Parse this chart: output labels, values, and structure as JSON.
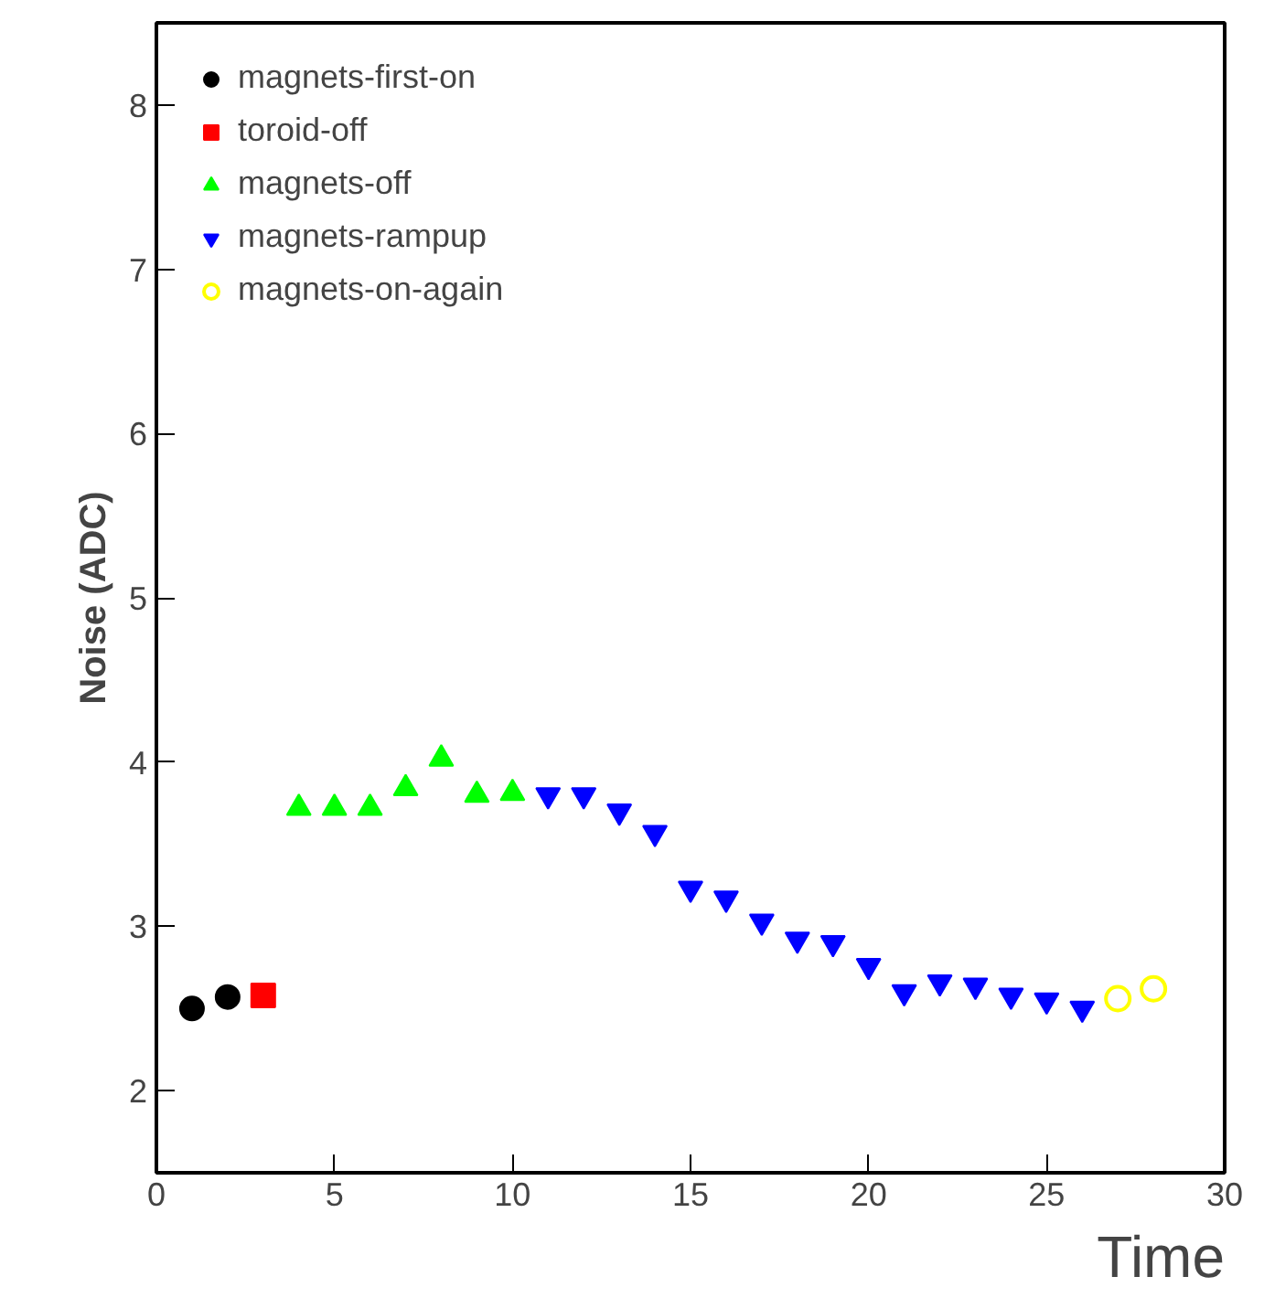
{
  "chart_data": {
    "type": "scatter",
    "xlabel": "Time",
    "ylabel": "Noise (ADC)",
    "xlim": [
      0,
      30
    ],
    "ylim": [
      1.5,
      8.5
    ],
    "xticks": [
      0,
      5,
      10,
      15,
      20,
      25,
      30
    ],
    "yticks": [
      2,
      3,
      4,
      5,
      6,
      7,
      8
    ],
    "grid": false,
    "legend": "top left",
    "series": [
      {
        "name": "magnets-first-on",
        "color": "#000000",
        "marker": "circle",
        "x": [
          1,
          2
        ],
        "values": [
          2.5,
          2.57
        ]
      },
      {
        "name": "toroid-off",
        "color": "#ff0000",
        "marker": "square",
        "x": [
          3
        ],
        "values": [
          2.58
        ]
      },
      {
        "name": "magnets-off",
        "color": "#00ff00",
        "marker": "triangle",
        "x": [
          4,
          5,
          6,
          7,
          8,
          9,
          10
        ],
        "values": [
          3.72,
          3.72,
          3.72,
          3.84,
          4.02,
          3.8,
          3.81
        ]
      },
      {
        "name": "magnets-rampup",
        "color": "#0000ff",
        "marker": "triangle_down",
        "x": [
          11,
          12,
          13,
          14,
          15,
          16,
          17,
          18,
          19,
          20,
          21,
          22,
          23,
          24,
          25,
          26
        ],
        "values": [
          3.8,
          3.8,
          3.7,
          3.57,
          3.23,
          3.17,
          3.03,
          2.92,
          2.9,
          2.76,
          2.6,
          2.66,
          2.64,
          2.58,
          2.55,
          2.5
        ]
      },
      {
        "name": "magnets-on-again",
        "color": "#ffff00",
        "marker": "circle_open",
        "x": [
          27,
          28
        ],
        "values": [
          2.56,
          2.62
        ]
      }
    ]
  }
}
